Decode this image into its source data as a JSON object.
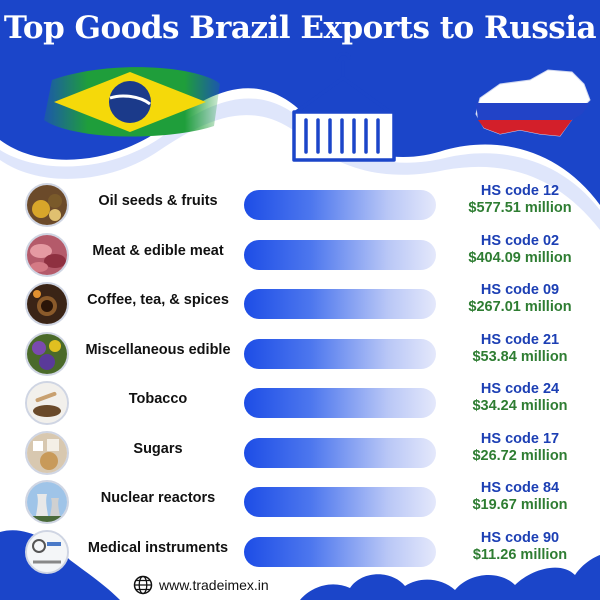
{
  "title": "Top Goods Brazil Exports to Russia",
  "footer": {
    "website": "www.tradeimex.in",
    "icon": "globe-icon"
  },
  "colors": {
    "brand_blue": "#1b45c9",
    "bar_start": "#1d4de6",
    "code_text": "#1c3fb4",
    "value_text": "#2e7d32"
  },
  "chart_data": {
    "type": "bar",
    "title": "Top Goods Brazil Exports to Russia",
    "categories": [
      "Oil seeds & fruits",
      "Meat & edible meat",
      "Coffee, tea, & spices",
      "Miscellaneous edible",
      "Tobacco",
      "Sugars",
      "Nuclear reactors",
      "Medical instruments"
    ],
    "hs_codes": [
      "HS code 12",
      "HS code 02",
      "HS code 09",
      "HS code 21",
      "HS code 24",
      "HS code 17",
      "HS code 84",
      "HS code 90"
    ],
    "value_labels": [
      "$577.51 million",
      "$404.09 million",
      "$267.01 million",
      "$53.84 million",
      "$34.24 million",
      "$26.72 million",
      "$19.67 million",
      "$11.26 million"
    ],
    "values": [
      577.51,
      404.09,
      267.01,
      53.84,
      34.24,
      26.72,
      19.67,
      11.26
    ],
    "unit": "$ million",
    "bars_equal_length": true,
    "thumbnail_icons": [
      "oil-seeds-photo-icon",
      "meat-photo-icon",
      "coffee-photo-icon",
      "misc-edible-photo-icon",
      "tobacco-photo-icon",
      "sugars-photo-icon",
      "nuclear-reactor-photo-icon",
      "medical-instruments-photo-icon"
    ]
  }
}
